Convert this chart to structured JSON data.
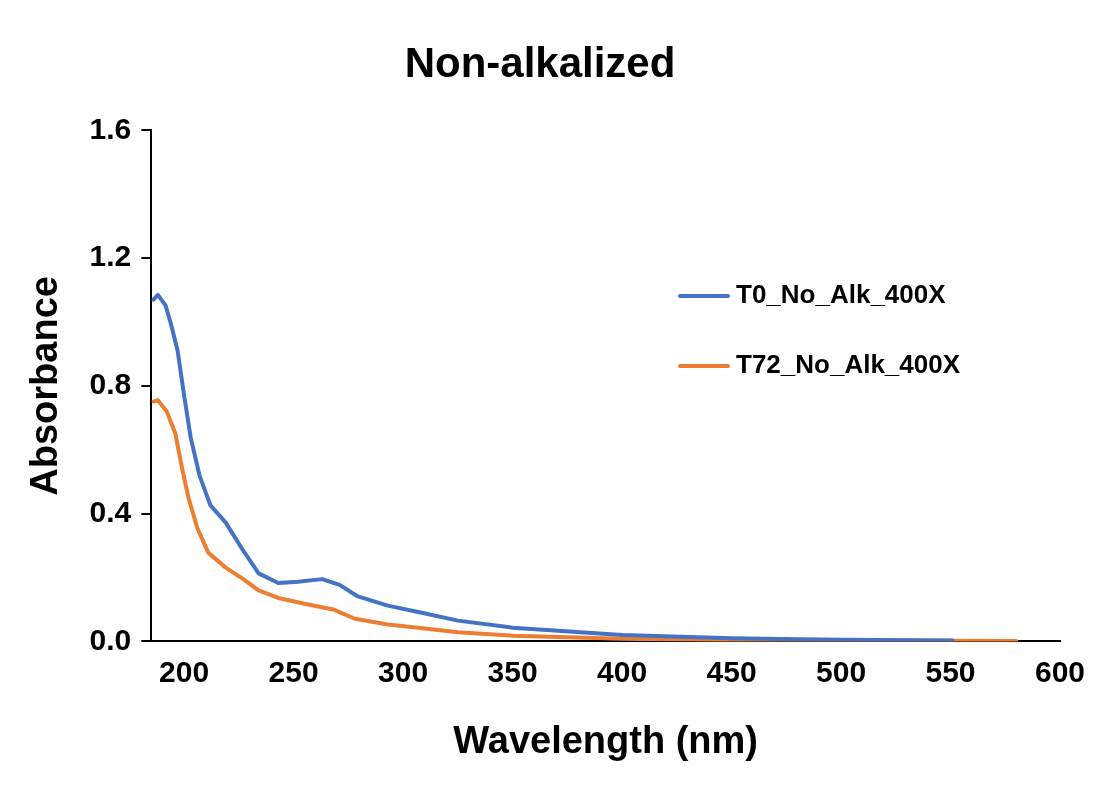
{
  "chart_data": {
    "type": "line",
    "title": "Non-alkalized",
    "xlabel": "Wavelength (nm)",
    "ylabel": "Absorbance",
    "xlim": [
      185,
      600
    ],
    "xticks": [
      200,
      250,
      300,
      350,
      400,
      450,
      500,
      550,
      600
    ],
    "ylim": [
      0,
      1.6
    ],
    "yticks": [
      {
        "value": 0,
        "label": "0.0"
      },
      0.4,
      0.8,
      1.2,
      1.6
    ],
    "grid": false,
    "legend": "right",
    "marker": "none",
    "line_style": "solid",
    "series": [
      {
        "name": "T0_No_Alk_400X",
        "color": "#4472c4",
        "x": [
          186,
          188,
          191.5,
          194,
          197,
          200,
          203,
          207,
          212,
          219,
          227,
          234,
          243,
          252,
          263,
          271,
          279,
          293,
          309,
          325,
          350,
          400,
          450,
          500,
          551
        ],
        "values": [
          1.07,
          1.085,
          1.052,
          0.993,
          0.911,
          0.769,
          0.638,
          0.52,
          0.426,
          0.372,
          0.284,
          0.213,
          0.183,
          0.187,
          0.195,
          0.177,
          0.142,
          0.112,
          0.089,
          0.065,
          0.043,
          0.02,
          0.01,
          0.005,
          0.003
        ]
      },
      {
        "name": "T72_No_Alk_400X",
        "color": "#ed7d31",
        "x": [
          186,
          188,
          192,
          196,
          199,
          202,
          206,
          211,
          219,
          227,
          234,
          243,
          255,
          268,
          278,
          293,
          309,
          325,
          350,
          400,
          450,
          500,
          580
        ],
        "values": [
          0.751,
          0.755,
          0.721,
          0.65,
          0.544,
          0.449,
          0.355,
          0.278,
          0.231,
          0.195,
          0.16,
          0.136,
          0.118,
          0.1,
          0.071,
          0.053,
          0.041,
          0.029,
          0.018,
          0.008,
          0.004,
          null,
          0.001
        ]
      }
    ]
  }
}
